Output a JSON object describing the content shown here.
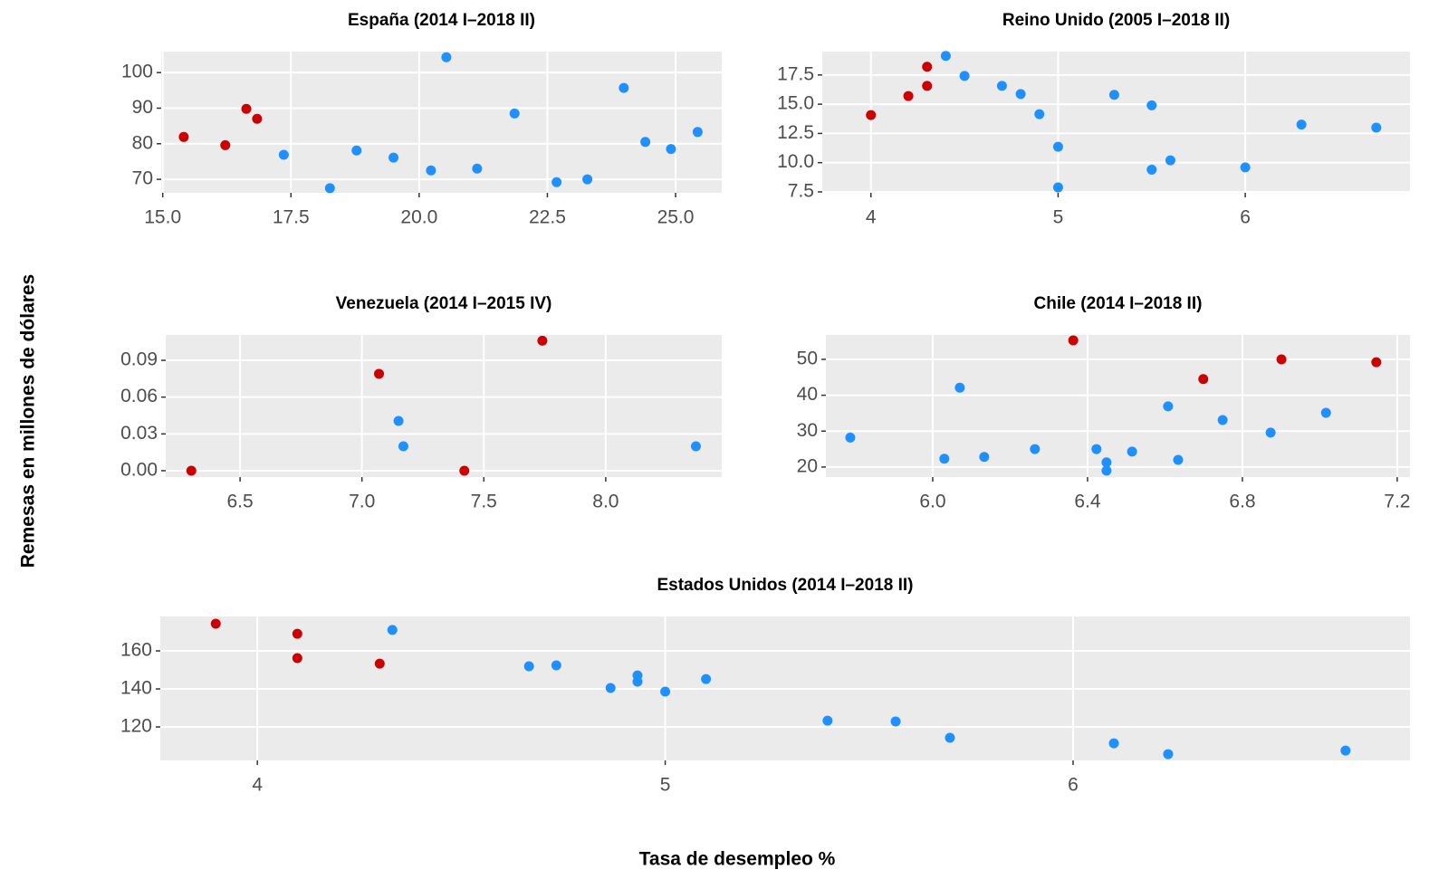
{
  "ylabel": "Remesas en millones de dólares",
  "xlabel": "Tasa de desempleo %",
  "chart_data": [
    {
      "type": "scatter",
      "title": "España (2014 I–2018 II)",
      "grid": true,
      "xlim": [
        14.97,
        25.9
      ],
      "ylim": [
        66.2,
        105.9
      ],
      "xticks": [
        {
          "value": 15,
          "label": "15.0"
        },
        17.5,
        {
          "value": 20,
          "label": "20.0"
        },
        22.5,
        {
          "value": 25,
          "label": "25.0"
        }
      ],
      "yticks": [
        70,
        80,
        90,
        100
      ],
      "series": [
        {
          "color": "#cc0000",
          "x": [
            15.41,
            16.22,
            16.63,
            16.84
          ],
          "values": [
            81.9,
            79.6,
            89.8,
            87.0
          ]
        },
        {
          "color": "#1e90ff",
          "x": [
            17.36,
            18.26,
            18.78,
            19.5,
            20.23,
            20.53,
            21.13,
            21.86,
            22.68,
            23.28,
            23.99,
            24.41,
            24.91,
            25.43
          ],
          "values": [
            76.9,
            67.5,
            78.1,
            76.1,
            72.5,
            104.3,
            73.0,
            88.5,
            69.2,
            70.0,
            95.7,
            80.5,
            78.5,
            83.3
          ]
        }
      ]
    },
    {
      "type": "scatter",
      "title": "Reino Unido (2005 I–2018 II)",
      "grid": true,
      "xlim": [
        3.74,
        6.88
      ],
      "ylim": [
        7.42,
        19.5
      ],
      "xticks": [
        4,
        5,
        6
      ],
      "yticks": [
        7.5,
        {
          "value": 10,
          "label": "10.0"
        },
        12.5,
        {
          "value": 15,
          "label": "15.0"
        },
        17.5
      ],
      "series": [
        {
          "color": "#cc0000",
          "x": [
            4.0,
            4.2,
            4.3,
            4.3
          ],
          "values": [
            14.07,
            15.7,
            16.57,
            18.2
          ]
        },
        {
          "color": "#1e90ff",
          "x": [
            4.4,
            4.5,
            4.7,
            4.8,
            4.9,
            5.0,
            5.0,
            5.3,
            5.5,
            5.5,
            5.6,
            6.0,
            6.3,
            6.7
          ],
          "values": [
            19.13,
            17.42,
            16.57,
            15.87,
            14.15,
            11.36,
            7.88,
            15.8,
            14.9,
            9.4,
            10.2,
            9.6,
            13.26,
            13.0
          ]
        }
      ]
    },
    {
      "type": "scatter",
      "title": "Venezuela (2014 I–2015 IV)",
      "grid": true,
      "xlim": [
        6.195,
        8.476
      ],
      "ylim": [
        -0.0052,
        0.1107
      ],
      "xticks": [
        6.5,
        {
          "value": 7,
          "label": "7.0"
        },
        7.5,
        {
          "value": 8,
          "label": "8.0"
        }
      ],
      "yticks": [
        {
          "value": 0,
          "label": "0.00"
        },
        0.03,
        0.06,
        0.09
      ],
      "series": [
        {
          "color": "#cc0000",
          "x": [
            6.3,
            7.07,
            7.42,
            7.74
          ],
          "values": [
            0.0,
            0.079,
            0.0,
            0.106
          ]
        },
        {
          "color": "#1e90ff",
          "x": [
            7.15,
            7.17,
            8.37
          ],
          "values": [
            0.0406,
            0.0199,
            0.0199
          ]
        }
      ]
    },
    {
      "type": "scatter",
      "title": "Chile (2014 I–2018 II)",
      "grid": true,
      "xlim": [
        5.724,
        7.233
      ],
      "ylim": [
        17.2,
        56.8
      ],
      "xticks": [
        {
          "value": 6,
          "label": "6.0"
        },
        6.4,
        6.8,
        7.2
      ],
      "yticks": [
        20,
        30,
        40,
        50
      ],
      "series": [
        {
          "color": "#cc0000",
          "x": [
            6.363,
            6.699,
            6.901,
            7.146
          ],
          "values": [
            55.3,
            44.5,
            50.0,
            49.2
          ]
        },
        {
          "color": "#1e90ff",
          "x": [
            5.787,
            6.03,
            6.07,
            6.133,
            6.264,
            6.423,
            6.449,
            6.449,
            6.515,
            6.608,
            6.634,
            6.749,
            6.873,
            7.016
          ],
          "values": [
            28.2,
            22.3,
            42.1,
            22.8,
            25.0,
            25.0,
            21.3,
            19.0,
            24.3,
            36.9,
            22.0,
            33.1,
            29.6,
            35.1
          ]
        }
      ]
    },
    {
      "type": "scatter",
      "title": "Estados Unidos (2014 I–2018 II)",
      "grid": true,
      "xlim": [
        3.762,
        6.826
      ],
      "ylim": [
        102.4,
        178.1
      ],
      "xticks": [
        4,
        5,
        6
      ],
      "yticks": [
        120,
        140,
        160
      ],
      "series": [
        {
          "color": "#cc0000",
          "x": [
            3.898,
            4.098,
            4.098,
            4.3
          ],
          "values": [
            174.3,
            169.0,
            156.2,
            153.3
          ]
        },
        {
          "color": "#1e90ff",
          "x": [
            4.331,
            4.666,
            4.733,
            4.866,
            4.932,
            4.932,
            5.0,
            5.1,
            5.398,
            5.565,
            5.698,
            6.1,
            6.233,
            6.668
          ],
          "values": [
            171.0,
            151.9,
            152.4,
            140.5,
            147.1,
            143.8,
            138.6,
            145.2,
            123.3,
            122.9,
            114.3,
            111.4,
            105.7,
            107.6
          ]
        }
      ]
    }
  ]
}
